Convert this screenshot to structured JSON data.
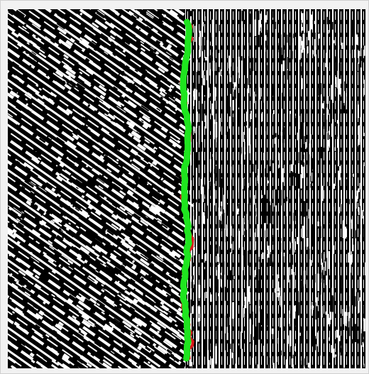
{
  "image": {
    "description_icon": "texture-segmentation-image",
    "left_texture": "diagonal-noise-texture",
    "right_texture": "vertical-stripe-texture",
    "colors": {
      "texture_white": "#ffffff",
      "texture_black": "#000000",
      "boundary_true": "#d81b1b",
      "boundary_estimated": "#1fe51f",
      "frame": "#f2f2f2"
    }
  }
}
